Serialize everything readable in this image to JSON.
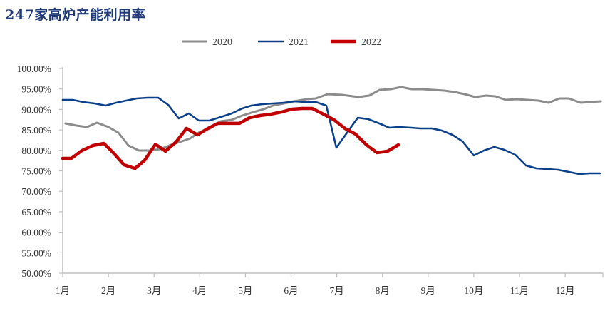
{
  "chart_data": {
    "type": "line",
    "title": "247家高炉产能利用率",
    "xlabel": "",
    "ylabel": "",
    "x_ticks": [
      "1月",
      "2月",
      "3月",
      "4月",
      "5月",
      "6月",
      "7月",
      "8月",
      "9月",
      "10月",
      "11月",
      "12月"
    ],
    "xlim": [
      1,
      12.83
    ],
    "ylim": [
      50,
      100
    ],
    "y_ticks": [
      "50.00%",
      "55.00%",
      "60.00%",
      "65.00%",
      "70.00%",
      "75.00%",
      "80.00%",
      "85.00%",
      "90.00%",
      "95.00%",
      "100.00%"
    ],
    "grid": false,
    "legend_position": "top-center",
    "series": [
      {
        "name": "2020",
        "color": "#8c8c8c",
        "points": [
          [
            1.06,
            86.59
          ],
          [
            1.3,
            86.06
          ],
          [
            1.53,
            85.72
          ],
          [
            1.75,
            86.76
          ],
          [
            2.0,
            85.72
          ],
          [
            2.22,
            84.32
          ],
          [
            2.44,
            81.19
          ],
          [
            2.67,
            79.97
          ],
          [
            2.9,
            79.97
          ],
          [
            3.14,
            80.32
          ],
          [
            3.37,
            81.36
          ],
          [
            3.61,
            82.23
          ],
          [
            3.79,
            82.93
          ],
          [
            4.0,
            84.5
          ],
          [
            4.23,
            85.37
          ],
          [
            4.46,
            87.11
          ],
          [
            4.7,
            87.46
          ],
          [
            4.93,
            88.5
          ],
          [
            5.13,
            89.2
          ],
          [
            5.4,
            90.07
          ],
          [
            5.6,
            90.94
          ],
          [
            5.84,
            91.46
          ],
          [
            6.07,
            91.99
          ],
          [
            6.34,
            92.51
          ],
          [
            6.54,
            92.68
          ],
          [
            6.8,
            93.73
          ],
          [
            7.12,
            93.55
          ],
          [
            7.47,
            93.03
          ],
          [
            7.71,
            93.38
          ],
          [
            7.94,
            94.77
          ],
          [
            8.18,
            94.95
          ],
          [
            8.41,
            95.47
          ],
          [
            8.64,
            94.95
          ],
          [
            8.88,
            94.95
          ],
          [
            9.11,
            94.77
          ],
          [
            9.35,
            94.6
          ],
          [
            9.58,
            94.25
          ],
          [
            9.8,
            93.73
          ],
          [
            10.03,
            93.03
          ],
          [
            10.27,
            93.38
          ],
          [
            10.47,
            93.2
          ],
          [
            10.7,
            92.34
          ],
          [
            10.94,
            92.51
          ],
          [
            11.17,
            92.34
          ],
          [
            11.41,
            92.16
          ],
          [
            11.64,
            91.64
          ],
          [
            11.87,
            92.68
          ],
          [
            12.08,
            92.68
          ],
          [
            12.34,
            91.64
          ],
          [
            12.54,
            91.81
          ],
          [
            12.78,
            91.99
          ]
        ]
      },
      {
        "name": "2021",
        "color": "#0a3f8a",
        "points": [
          [
            1.0,
            92.33
          ],
          [
            1.22,
            92.33
          ],
          [
            1.45,
            91.81
          ],
          [
            1.7,
            91.46
          ],
          [
            1.94,
            90.94
          ],
          [
            2.17,
            91.64
          ],
          [
            2.39,
            92.16
          ],
          [
            2.62,
            92.68
          ],
          [
            2.86,
            92.86
          ],
          [
            3.09,
            92.86
          ],
          [
            3.31,
            91.12
          ],
          [
            3.54,
            87.81
          ],
          [
            3.76,
            89.03
          ],
          [
            3.98,
            87.28
          ],
          [
            4.21,
            87.28
          ],
          [
            4.46,
            88.15
          ],
          [
            4.7,
            89.03
          ],
          [
            4.93,
            90.25
          ],
          [
            5.13,
            90.94
          ],
          [
            5.37,
            91.29
          ],
          [
            5.6,
            91.46
          ],
          [
            5.84,
            91.64
          ],
          [
            6.07,
            91.99
          ],
          [
            6.3,
            91.81
          ],
          [
            6.54,
            91.81
          ],
          [
            6.77,
            90.94
          ],
          [
            6.99,
            80.66
          ],
          [
            7.46,
            87.98
          ],
          [
            7.69,
            87.63
          ],
          [
            7.93,
            86.59
          ],
          [
            8.15,
            85.54
          ],
          [
            8.36,
            85.72
          ],
          [
            8.63,
            85.54
          ],
          [
            8.83,
            85.37
          ],
          [
            9.08,
            85.37
          ],
          [
            9.3,
            84.84
          ],
          [
            9.53,
            83.8
          ],
          [
            9.75,
            82.23
          ],
          [
            10.0,
            78.75
          ],
          [
            10.22,
            79.97
          ],
          [
            10.45,
            80.84
          ],
          [
            10.67,
            80.14
          ],
          [
            10.91,
            78.92
          ],
          [
            11.14,
            76.31
          ],
          [
            11.37,
            75.61
          ],
          [
            11.61,
            75.44
          ],
          [
            11.84,
            75.26
          ],
          [
            12.08,
            74.74
          ],
          [
            12.31,
            74.22
          ],
          [
            12.53,
            74.39
          ],
          [
            12.76,
            74.39
          ]
        ]
      },
      {
        "name": "2022",
        "color": "#c00000",
        "points": [
          [
            1.0,
            78.05
          ],
          [
            1.19,
            78.05
          ],
          [
            1.42,
            79.97
          ],
          [
            1.66,
            81.19
          ],
          [
            1.9,
            81.71
          ],
          [
            2.12,
            79.27
          ],
          [
            2.34,
            76.48
          ],
          [
            2.58,
            75.6
          ],
          [
            2.79,
            77.5
          ],
          [
            3.03,
            81.5
          ],
          [
            3.25,
            79.8
          ],
          [
            3.48,
            82.06
          ],
          [
            3.71,
            85.37
          ],
          [
            3.95,
            83.8
          ],
          [
            4.18,
            85.37
          ],
          [
            4.4,
            86.6
          ],
          [
            4.62,
            86.6
          ],
          [
            4.87,
            86.6
          ],
          [
            5.09,
            87.98
          ],
          [
            5.32,
            88.5
          ],
          [
            5.56,
            88.85
          ],
          [
            5.79,
            89.37
          ],
          [
            6.02,
            90.07
          ],
          [
            6.24,
            90.24
          ],
          [
            6.46,
            90.24
          ],
          [
            6.71,
            88.85
          ],
          [
            6.94,
            87.46
          ],
          [
            7.18,
            85.37
          ],
          [
            7.41,
            83.97
          ],
          [
            7.65,
            81.36
          ],
          [
            7.88,
            79.44
          ],
          [
            8.11,
            79.79
          ],
          [
            8.35,
            81.36
          ]
        ]
      }
    ]
  }
}
